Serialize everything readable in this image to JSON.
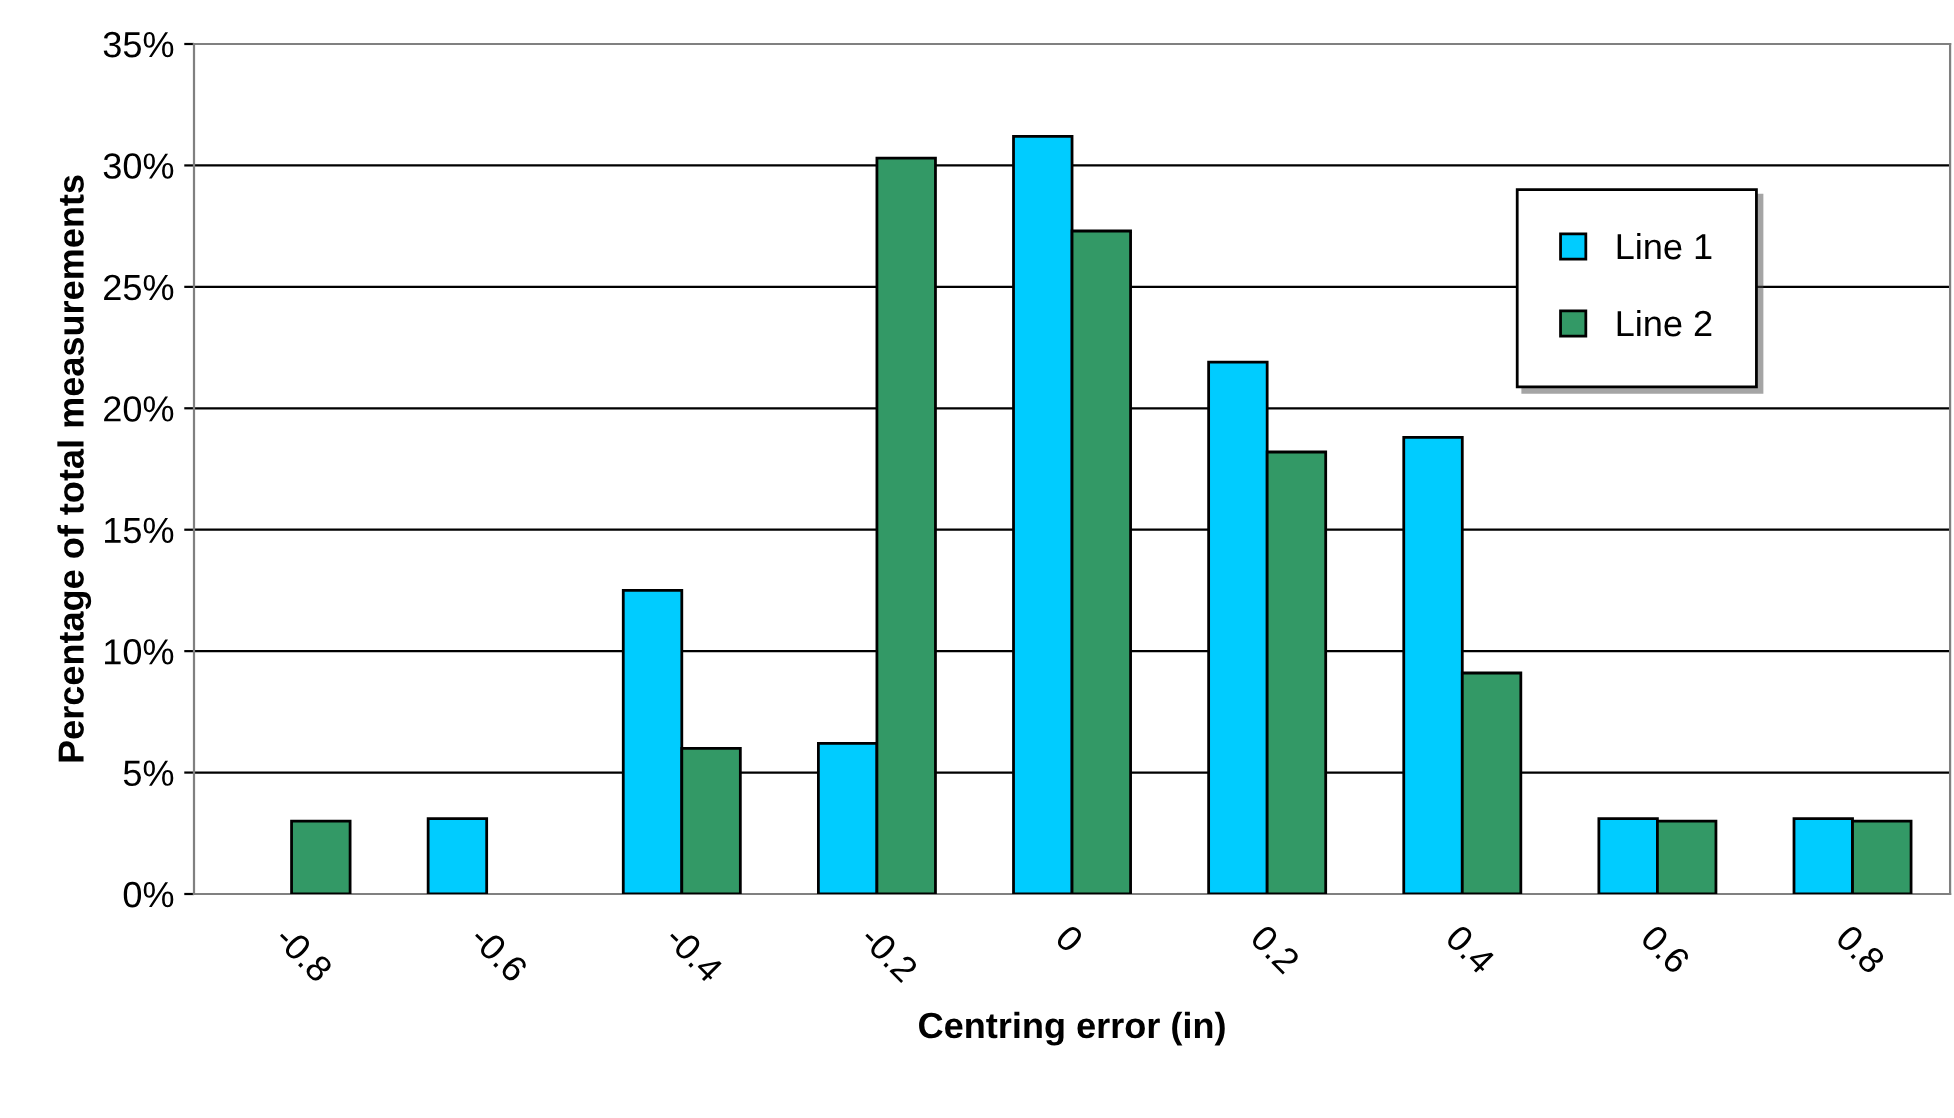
{
  "chart_data": {
    "type": "bar",
    "xlabel": "Centring error (in)",
    "ylabel": "Percentage of total measurements",
    "categories": [
      "-0.8",
      "-0.6",
      "-0.4",
      "-0.2",
      "0",
      "0.2",
      "0.4",
      "0.6",
      "0.8"
    ],
    "series": [
      {
        "name": "Line 1",
        "color": "#00ccff",
        "values": [
          null,
          3.1,
          12.5,
          6.2,
          31.2,
          21.9,
          18.8,
          3.1,
          3.1
        ]
      },
      {
        "name": "Line 2",
        "color": "#339966",
        "values": [
          3.0,
          null,
          6.0,
          30.3,
          27.3,
          18.2,
          9.1,
          3.0,
          3.0
        ]
      }
    ],
    "ylim": [
      0,
      35
    ],
    "yticks": [
      {
        "value": 0,
        "label": "0%"
      },
      {
        "value": 5,
        "label": "5%"
      },
      {
        "value": 10,
        "label": "10%"
      },
      {
        "value": 15,
        "label": "15%"
      },
      {
        "value": 20,
        "label": "20%"
      },
      {
        "value": 25,
        "label": "25%"
      },
      {
        "value": 30,
        "label": "30%"
      },
      {
        "value": 35,
        "label": "35%"
      }
    ],
    "grid": "y",
    "legend": "top right"
  }
}
